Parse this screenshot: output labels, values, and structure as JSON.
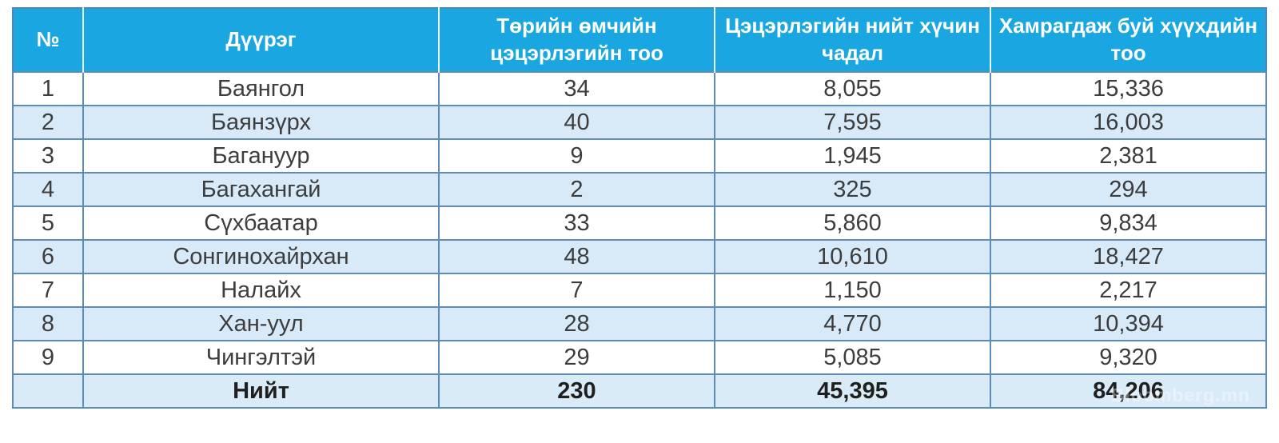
{
  "chart_data": {
    "type": "table",
    "title": "",
    "columns": [
      "№",
      "Дүүрэг",
      "Төрийн өмчийн цэцэрлэгийн тоо",
      "Цэцэрлэгийн нийт хүчин чадал",
      "Хамрагдаж буй хүүхдийн тоо"
    ],
    "rows": [
      [
        "1",
        "Баянгол",
        "34",
        "8,055",
        "15,336"
      ],
      [
        "2",
        "Баянзүрх",
        "40",
        "7,595",
        "16,003"
      ],
      [
        "3",
        "Багануур",
        "9",
        "1,945",
        "2,381"
      ],
      [
        "4",
        "Багахангай",
        "2",
        "325",
        "294"
      ],
      [
        "5",
        "Сүхбаатар",
        "33",
        "5,860",
        "9,834"
      ],
      [
        "6",
        "Сонгинохайрхан",
        "48",
        "10,610",
        "18,427"
      ],
      [
        "7",
        "Налайх",
        "7",
        "1,150",
        "2,217"
      ],
      [
        "8",
        "Хан-уул",
        "28",
        "4,770",
        "10,394"
      ],
      [
        "9",
        "Чингэлтэй",
        "29",
        "5,085",
        "9,320"
      ]
    ],
    "total_row": [
      "",
      "Нийт",
      "230",
      "45,395",
      "84,206"
    ]
  },
  "table": {
    "columns": [
      {
        "key": "num",
        "label": "№"
      },
      {
        "key": "district",
        "label": "Дүүрэг"
      },
      {
        "key": "kindergartens",
        "label": "Төрийн өмчийн\nцэцэрлэгийн тоо"
      },
      {
        "key": "capacity",
        "label": "Цэцэрлэгийн нийт хүчин\nчадал"
      },
      {
        "key": "children",
        "label": "Хамрагдаж буй хүүхдийн\nтоо"
      }
    ],
    "rows": [
      {
        "num": "1",
        "district": "Баянгол",
        "kindergartens": "34",
        "capacity": "8,055",
        "children": "15,336"
      },
      {
        "num": "2",
        "district": "Баянзүрх",
        "kindergartens": "40",
        "capacity": "7,595",
        "children": "16,003"
      },
      {
        "num": "3",
        "district": "Багануур",
        "kindergartens": "9",
        "capacity": "1,945",
        "children": "2,381"
      },
      {
        "num": "4",
        "district": "Багахангай",
        "kindergartens": "2",
        "capacity": "325",
        "children": "294"
      },
      {
        "num": "5",
        "district": "Сүхбаатар",
        "kindergartens": "33",
        "capacity": "5,860",
        "children": "9,834"
      },
      {
        "num": "6",
        "district": "Сонгинохайрхан",
        "kindergartens": "48",
        "capacity": "10,610",
        "children": "18,427"
      },
      {
        "num": "7",
        "district": "Налайх",
        "kindergartens": "7",
        "capacity": "1,150",
        "children": "2,217"
      },
      {
        "num": "8",
        "district": "Хан-уул",
        "kindergartens": "28",
        "capacity": "4,770",
        "children": "10,394"
      },
      {
        "num": "9",
        "district": "Чингэлтэй",
        "kindergartens": "29",
        "capacity": "5,085",
        "children": "9,320"
      }
    ],
    "total": {
      "num": "",
      "district": "Нийт",
      "kindergartens": "230",
      "capacity": "45,395",
      "children": "84,206"
    }
  },
  "watermark": {
    "text": "Bloomberg.mn"
  },
  "colors": {
    "header_bg": "#1AA7E1",
    "header_text": "#FFFFFF",
    "row_alt_bg": "#D8EAF8",
    "total_row_bg": "#DAEBF8",
    "cell_border": "#5E8CB8",
    "body_text": "#3D3D3D"
  }
}
